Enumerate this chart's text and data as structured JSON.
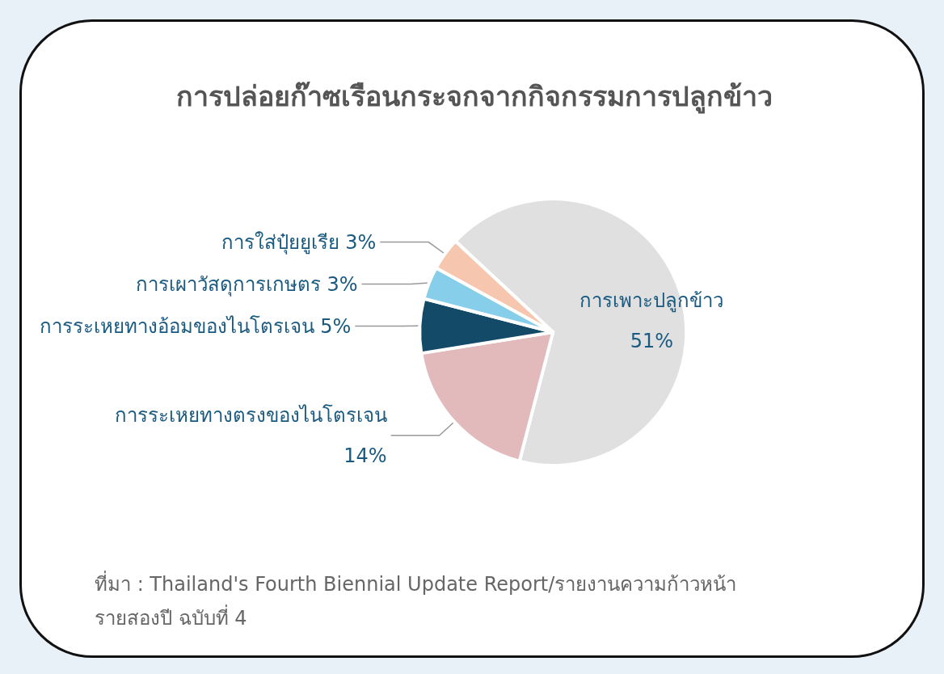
{
  "chart_data": {
    "type": "pie",
    "title": "การปล่อยก๊าซเรือนกระจกจากกิจกรรมการปลูกข้าว",
    "categories": [
      "การเพาะปลูกข้าว",
      "การระเหยทางตรงของไนโตรเจน",
      "การระเหยทางอ้อมของไนโตรเจน",
      "การเผาวัสดุการเกษตร",
      "การใส่ปุ๋ยยูเรีย"
    ],
    "values": [
      51,
      14,
      5,
      3,
      3
    ],
    "value_labels": [
      "51%",
      "14%",
      "5%",
      "3%",
      "3%"
    ],
    "colors": [
      "#e0e0e0",
      "#e2babb",
      "#124a68",
      "#87ceeb",
      "#f6c7ae"
    ],
    "annotations": [
      "ที่มา : Thailand's Fourth Biennial Update Report/รายงานความก้าวหน้ารายสองปี ฉบับที่ 4"
    ],
    "legend": false
  }
}
